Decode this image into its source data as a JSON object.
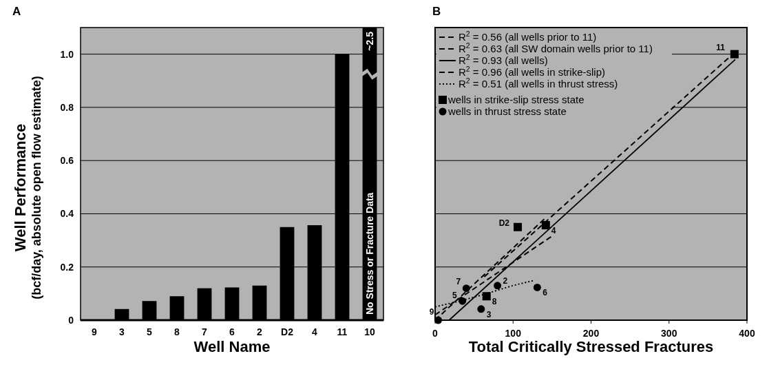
{
  "chart_data": [
    {
      "type": "bar",
      "title": "A",
      "xlabel": "Well Name",
      "ylabel": "Well Performance\n(bcf/day, absolute open flow estimate)",
      "categories": [
        "9",
        "3",
        "5",
        "8",
        "7",
        "6",
        "2",
        "D2",
        "4",
        "11",
        "10"
      ],
      "values": [
        0,
        0.042,
        0.072,
        0.09,
        0.12,
        0.123,
        0.13,
        0.35,
        0.357,
        1.0,
        null
      ],
      "value_labels": [
        null,
        null,
        null,
        null,
        null,
        null,
        null,
        null,
        null,
        null,
        "~2.5"
      ],
      "color": "#000000",
      "ylim": [
        0,
        1.1
      ],
      "yticks": [
        0,
        {
          "value": 0.2,
          "label": "0.2"
        },
        {
          "value": 0.4,
          "label": "0.4"
        },
        {
          "value": 0.6,
          "label": "0.6"
        },
        {
          "value": 0.8,
          "label": "0.8"
        },
        {
          "value": 1,
          "label": "1.0"
        }
      ],
      "grid": "y",
      "annotations": [
        "No Stress or Fracture Data"
      ]
    },
    {
      "type": "scatter",
      "title": "B",
      "xlabel": "Total Critically Stressed Fractures",
      "xlim": [
        0,
        400
      ],
      "xticks": [
        0,
        100,
        200,
        300,
        400
      ],
      "ylim": [
        0,
        1.1
      ],
      "yticks": [
        {
          "value": 0,
          "label": null
        },
        {
          "value": 0.2,
          "label": null
        },
        {
          "value": 0.4,
          "label": null
        },
        {
          "value": 0.6,
          "label": null
        },
        {
          "value": 0.8,
          "label": null
        },
        {
          "value": 1,
          "label": null
        }
      ],
      "tick_labels": "x",
      "grid": "y",
      "legend": "top left",
      "series": [
        {
          "type": "line",
          "name": "R$^{2}$ = 0.56 (all wells prior to 11)",
          "color": "#000000",
          "line_style": "dashed",
          "x": [
            0,
            152
          ],
          "values": [
            0.02,
            0.32
          ]
        },
        {
          "type": "line",
          "name": "R$^{2}$ = 0.63 (all SW domain wells prior to 11)",
          "color": "#000000",
          "line_style": "dashed",
          "x": [
            0,
            140
          ],
          "values": [
            0,
            0.38
          ]
        },
        {
          "type": "line",
          "name": "R$^{2}$ = 0.93 (all wells)",
          "color": "#000000",
          "line_style": "solid",
          "x": [
            18,
            385
          ],
          "values": [
            0,
            0.98
          ]
        },
        {
          "type": "line",
          "name": "R$^{2}$ = 0.96 (all wells in strike-slip)",
          "color": "#000000",
          "line_style": "dashed",
          "x": [
            63,
            378
          ],
          "values": [
            0.163,
            0.99
          ]
        },
        {
          "type": "line",
          "name": "R$^{2}$ = 0.51 (all wells in thrust stress)",
          "color": "#000000",
          "line_style": "dotted",
          "x": [
            0,
            35,
            66,
            100,
            128
          ],
          "values": [
            0.05,
            0.075,
            0.1,
            0.13,
            0.15
          ]
        },
        {
          "type": "scatter",
          "name": "wells in strike-slip stress state",
          "color": "#000000",
          "marker": "square",
          "x": [
            384,
            106,
            142,
            66
          ],
          "values": [
            1.0,
            0.35,
            0.357,
            0.09
          ]
        },
        {
          "type": "scatter",
          "name": "wells in thrust stress state",
          "color": "#000000",
          "marker": "circle",
          "x": [
            40,
            80,
            35,
            59,
            131,
            4
          ],
          "values": [
            0.12,
            0.13,
            0.072,
            0.042,
            0.123,
            0
          ]
        }
      ],
      "annotations": [
        {
          "text": "11",
          "x": 384,
          "y": 1.0
        },
        {
          "text": "D2",
          "x": 106,
          "y": 0.35
        },
        {
          "text": "4",
          "x": 142,
          "y": 0.357
        },
        {
          "text": "8",
          "x": 66,
          "y": 0.09
        },
        {
          "text": "7",
          "x": 40,
          "y": 0.12
        },
        {
          "text": "2",
          "x": 80,
          "y": 0.13
        },
        {
          "text": "5",
          "x": 35,
          "y": 0.072
        },
        {
          "text": "3",
          "x": 59,
          "y": 0.042
        },
        {
          "text": "6",
          "x": 131,
          "y": 0.123
        },
        {
          "text": "9",
          "x": 4,
          "y": 0
        }
      ]
    }
  ]
}
